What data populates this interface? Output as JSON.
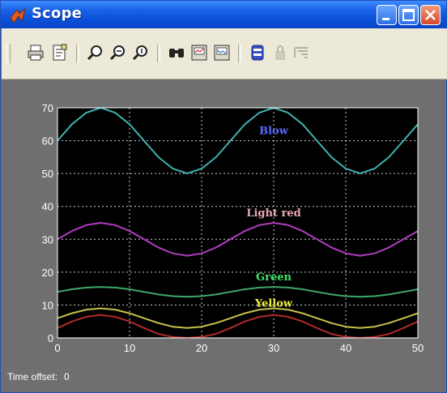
{
  "window": {
    "title": "Scope"
  },
  "toolbar": {
    "items": [
      {
        "name": "print-icon"
      },
      {
        "name": "parameters-icon"
      },
      {
        "name": "zoom-icon"
      },
      {
        "name": "zoom-x-icon"
      },
      {
        "name": "zoom-y-icon"
      },
      {
        "name": "autoscale-icon"
      },
      {
        "name": "save-axes-icon"
      },
      {
        "name": "restore-axes-icon"
      },
      {
        "name": "floating-scope-icon"
      },
      {
        "name": "lock-axes-icon"
      },
      {
        "name": "signal-selector-icon"
      }
    ]
  },
  "status": {
    "label": "Time offset:",
    "value": "0"
  },
  "chart_data": {
    "type": "line",
    "xlim": [
      0,
      50
    ],
    "ylim": [
      0,
      70
    ],
    "xticks": [
      "0",
      "10",
      "20",
      "30",
      "40",
      "50"
    ],
    "yticks": [
      "0",
      "10",
      "20",
      "30",
      "40",
      "50",
      "60",
      "70"
    ],
    "grid": true,
    "colors": {
      "background": "#000000",
      "axes": "#ffffff",
      "grid": "#ffffff"
    },
    "series": [
      {
        "name": "Blow",
        "color": "#3fb3b0",
        "label_color": "#5a6cff",
        "x": [
          0,
          2,
          4,
          6,
          8,
          10,
          12,
          14,
          16,
          18,
          20,
          22,
          24,
          26,
          28,
          30,
          32,
          34,
          36,
          38,
          40,
          42,
          44,
          46,
          48,
          50
        ],
        "y": [
          60,
          65,
          68.5,
          70,
          68.5,
          65,
          60,
          55,
          51.5,
          50,
          51.5,
          55,
          60,
          65,
          68.5,
          70,
          68.5,
          65,
          60,
          55,
          51.5,
          50,
          51.5,
          55,
          60,
          65
        ]
      },
      {
        "name": "Light red",
        "color": "#b03cc0",
        "label_color": "#e8a8b0",
        "x": [
          0,
          2,
          4,
          6,
          8,
          10,
          12,
          14,
          16,
          18,
          20,
          22,
          24,
          26,
          28,
          30,
          32,
          34,
          36,
          38,
          40,
          42,
          44,
          46,
          48,
          50
        ],
        "y": [
          30,
          32.5,
          34.3,
          35,
          34.3,
          32.5,
          30,
          27.5,
          25.7,
          25,
          25.7,
          27.5,
          30,
          32.5,
          34.3,
          35,
          34.3,
          32.5,
          30,
          27.5,
          25.7,
          25,
          25.7,
          27.5,
          30,
          32.5
        ]
      },
      {
        "name": "Green",
        "color": "#3fa86a",
        "label_color": "#3fe86a",
        "x": [
          0,
          2,
          4,
          6,
          8,
          10,
          12,
          14,
          16,
          18,
          20,
          22,
          24,
          26,
          28,
          30,
          32,
          34,
          36,
          38,
          40,
          42,
          44,
          46,
          48,
          50
        ],
        "y": [
          14,
          14.8,
          15.3,
          15.5,
          15.3,
          14.8,
          14,
          13.2,
          12.7,
          12.5,
          12.7,
          13.2,
          14,
          14.8,
          15.3,
          15.5,
          15.3,
          14.8,
          14,
          13.2,
          12.7,
          12.5,
          12.7,
          13.2,
          14,
          14.8
        ]
      },
      {
        "name": "Yellow",
        "color": "#c8c04a",
        "label_color": "#f2ee40",
        "x": [
          0,
          2,
          4,
          6,
          8,
          10,
          12,
          14,
          16,
          18,
          20,
          22,
          24,
          26,
          28,
          30,
          32,
          34,
          36,
          38,
          40,
          42,
          44,
          46,
          48,
          50
        ],
        "y": [
          6,
          7.5,
          8.6,
          9,
          8.6,
          7.5,
          6,
          4.5,
          3.4,
          3,
          3.4,
          4.5,
          6,
          7.5,
          8.6,
          9,
          8.6,
          7.5,
          6,
          4.5,
          3.4,
          3,
          3.4,
          4.5,
          6,
          7.5
        ]
      },
      {
        "name": "",
        "color": "#b02a2a",
        "label_color": "",
        "x": [
          0,
          2,
          4,
          6,
          8,
          10,
          12,
          14,
          16,
          18,
          20,
          22,
          24,
          26,
          28,
          30,
          32,
          34,
          36,
          38,
          40,
          42,
          44,
          46,
          48,
          50
        ],
        "y": [
          3,
          5,
          6.4,
          7,
          6.4,
          5,
          3,
          1.2,
          0.3,
          0,
          0.3,
          1.2,
          3,
          5,
          6.4,
          7,
          6.4,
          5,
          3,
          1.2,
          0.3,
          0,
          0.3,
          1.2,
          3,
          5
        ]
      }
    ],
    "annotations": [
      {
        "text": "Blow",
        "x": 30,
        "y": 62,
        "series": 0
      },
      {
        "text": "Light red",
        "x": 30,
        "y": 37,
        "series": 1
      },
      {
        "text": "Green",
        "x": 30,
        "y": 17.5,
        "series": 2
      },
      {
        "text": "Yellow",
        "x": 30,
        "y": 9.5,
        "series": 3
      }
    ]
  }
}
